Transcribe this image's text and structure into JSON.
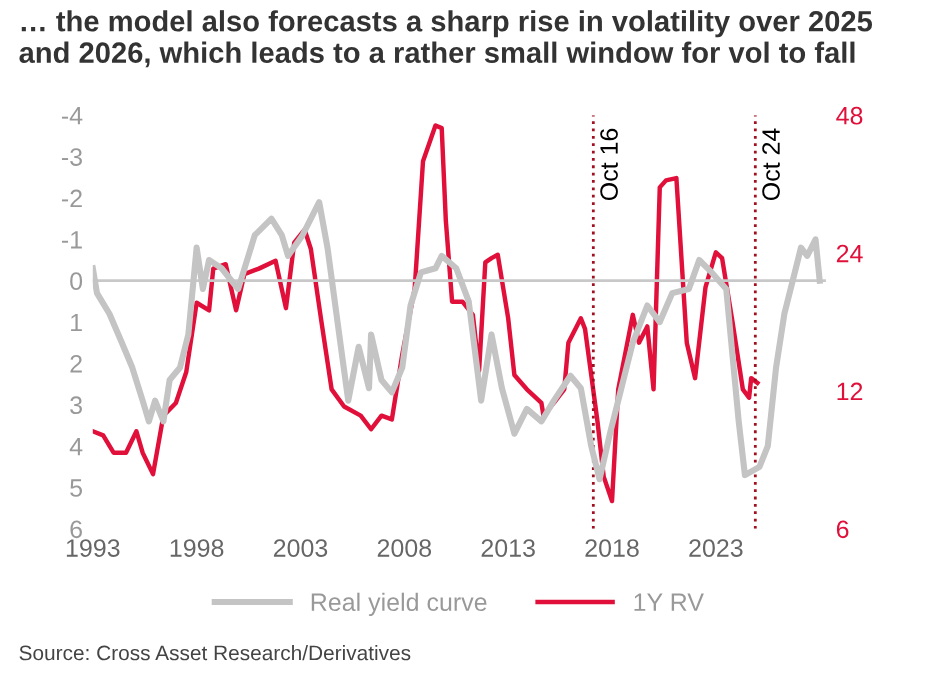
{
  "chart_data": {
    "type": "line",
    "title": "… the model also forecasts a sharp rise in volatility over 2025 and 2026, which leads to a rather small window for vol to fall",
    "xlim": [
      1993,
      2028.3
    ],
    "xticks": [
      1993,
      1998,
      2003,
      2008,
      2013,
      2018,
      2023
    ],
    "ylim": [
      6,
      -4
    ],
    "yticks": [
      -4,
      -3,
      -2,
      -1,
      0,
      1,
      2,
      3,
      4,
      5,
      6
    ],
    "y2lim": [
      6,
      48
    ],
    "y2ticks": [
      6,
      12,
      24,
      48
    ],
    "log": "y2",
    "series": [
      {
        "name": "Real yield curve",
        "color": "#c4c4c4",
        "x": [
          1993.0,
          1993.2,
          1993.8,
          1994.4,
          1994.9,
          1995.4,
          1995.7,
          1996.0,
          1996.4,
          1996.7,
          1997.2,
          1997.6,
          1998.0,
          1998.3,
          1998.6,
          1999.2,
          2000.0,
          2000.8,
          2001.6,
          2002.1,
          2002.4,
          2003.1,
          2003.9,
          2004.3,
          2005.0,
          2005.3,
          2005.8,
          2006.3,
          2006.4,
          2006.9,
          2007.4,
          2007.9,
          2008.3,
          2008.8,
          2009.5,
          2009.8,
          2010.5,
          2011.1,
          2011.7,
          2012.2,
          2012.7,
          2013.3,
          2013.9,
          2014.6,
          2015.2,
          2016.0,
          2016.5,
          2017.0,
          2017.4,
          2017.9,
          2018.6,
          2019.0,
          2019.7,
          2020.3,
          2020.9,
          2021.7,
          2022.2,
          2022.8,
          2023.5,
          2024.1,
          2024.4,
          2025.1,
          2025.5,
          2025.9,
          2026.3,
          2026.8,
          2027.1,
          2027.4,
          2027.8,
          2028.0
        ],
        "values": [
          -0.3,
          0.3,
          0.8,
          1.5,
          2.1,
          2.9,
          3.4,
          2.9,
          3.4,
          2.4,
          2.1,
          1.3,
          -0.8,
          0.2,
          -0.5,
          -0.3,
          0.2,
          -1.1,
          -1.5,
          -1.1,
          -0.6,
          -1.1,
          -1.9,
          -0.8,
          1.8,
          2.9,
          1.6,
          2.6,
          1.3,
          2.4,
          2.7,
          2.1,
          0.6,
          -0.2,
          -0.3,
          -0.6,
          -0.3,
          0.5,
          2.9,
          1.3,
          2.6,
          3.7,
          3.1,
          3.4,
          2.9,
          2.3,
          2.6,
          4.0,
          4.8,
          3.7,
          2.3,
          1.5,
          0.6,
          1.0,
          0.3,
          0.2,
          -0.5,
          -0.2,
          0.2,
          3.4,
          4.7,
          4.5,
          4.0,
          2.1,
          0.8,
          -0.2,
          -0.8,
          -0.6,
          -1.0,
          0.0
        ]
      },
      {
        "name": "1Y RV",
        "color": "#e0103a",
        "axis": "y2",
        "x": [
          1993.0,
          1993.5,
          1994.0,
          1994.6,
          1995.1,
          1995.4,
          1995.9,
          1996.4,
          1997.0,
          1997.5,
          1998.0,
          1998.6,
          1998.8,
          1999.4,
          1999.9,
          2000.3,
          2001.0,
          2001.8,
          2002.3,
          2002.7,
          2003.2,
          2003.5,
          2004.0,
          2004.5,
          2005.1,
          2005.9,
          2006.4,
          2006.9,
          2007.4,
          2007.9,
          2008.5,
          2008.9,
          2009.5,
          2009.8,
          2010.0,
          2010.3,
          2010.8,
          2011.3,
          2011.6,
          2011.9,
          2012.2,
          2012.5,
          2013.0,
          2013.3,
          2013.9,
          2014.6,
          2014.7,
          2015.2,
          2015.7,
          2015.9,
          2016.5,
          2016.7,
          2017.0,
          2017.3,
          2017.6,
          2018.0,
          2018.3,
          2019.0,
          2019.3,
          2019.7,
          2020.0,
          2020.3,
          2020.6,
          2021.1,
          2021.6,
          2022.0,
          2022.5,
          2023.0,
          2023.3,
          2023.8,
          2024.3,
          2024.6,
          2024.7,
          2025.0
        ],
        "values": [
          9.8,
          9.6,
          8.8,
          8.8,
          9.8,
          8.8,
          7.9,
          10.6,
          11.3,
          13.2,
          18.7,
          18.0,
          22.2,
          22.7,
          18.0,
          21.6,
          22.2,
          23.1,
          18.2,
          25.3,
          27.0,
          24.5,
          17.1,
          12.1,
          11.1,
          10.6,
          9.9,
          10.6,
          10.4,
          14.4,
          20.1,
          38.1,
          45.6,
          45.0,
          28.2,
          18.8,
          18.8,
          17.6,
          13.3,
          22.9,
          23.4,
          23.8,
          17.3,
          13.0,
          12.1,
          11.3,
          10.6,
          11.3,
          12.1,
          15.3,
          17.3,
          16.4,
          13.0,
          10.3,
          7.8,
          6.9,
          12.1,
          17.6,
          15.3,
          16.6,
          12.1,
          33.4,
          34.6,
          35.0,
          15.3,
          12.8,
          20.2,
          24.1,
          23.4,
          17.0,
          12.1,
          11.6,
          12.8,
          12.5
        ]
      }
    ],
    "ref_lines": [
      {
        "axis": "y",
        "value": 0,
        "color": "#c8c8c8",
        "line_style": "solid"
      },
      {
        "axis": "x",
        "value": 2017.1,
        "label": "Oct 16",
        "color": "#a01020",
        "line_style": "dotted"
      },
      {
        "axis": "x",
        "value": 2024.9,
        "label": "Oct 24",
        "color": "#a01020",
        "line_style": "dotted"
      }
    ],
    "legend": "bottom",
    "grid": false,
    "annotations": [
      "Source: Cross Asset Research/Derivatives"
    ]
  }
}
